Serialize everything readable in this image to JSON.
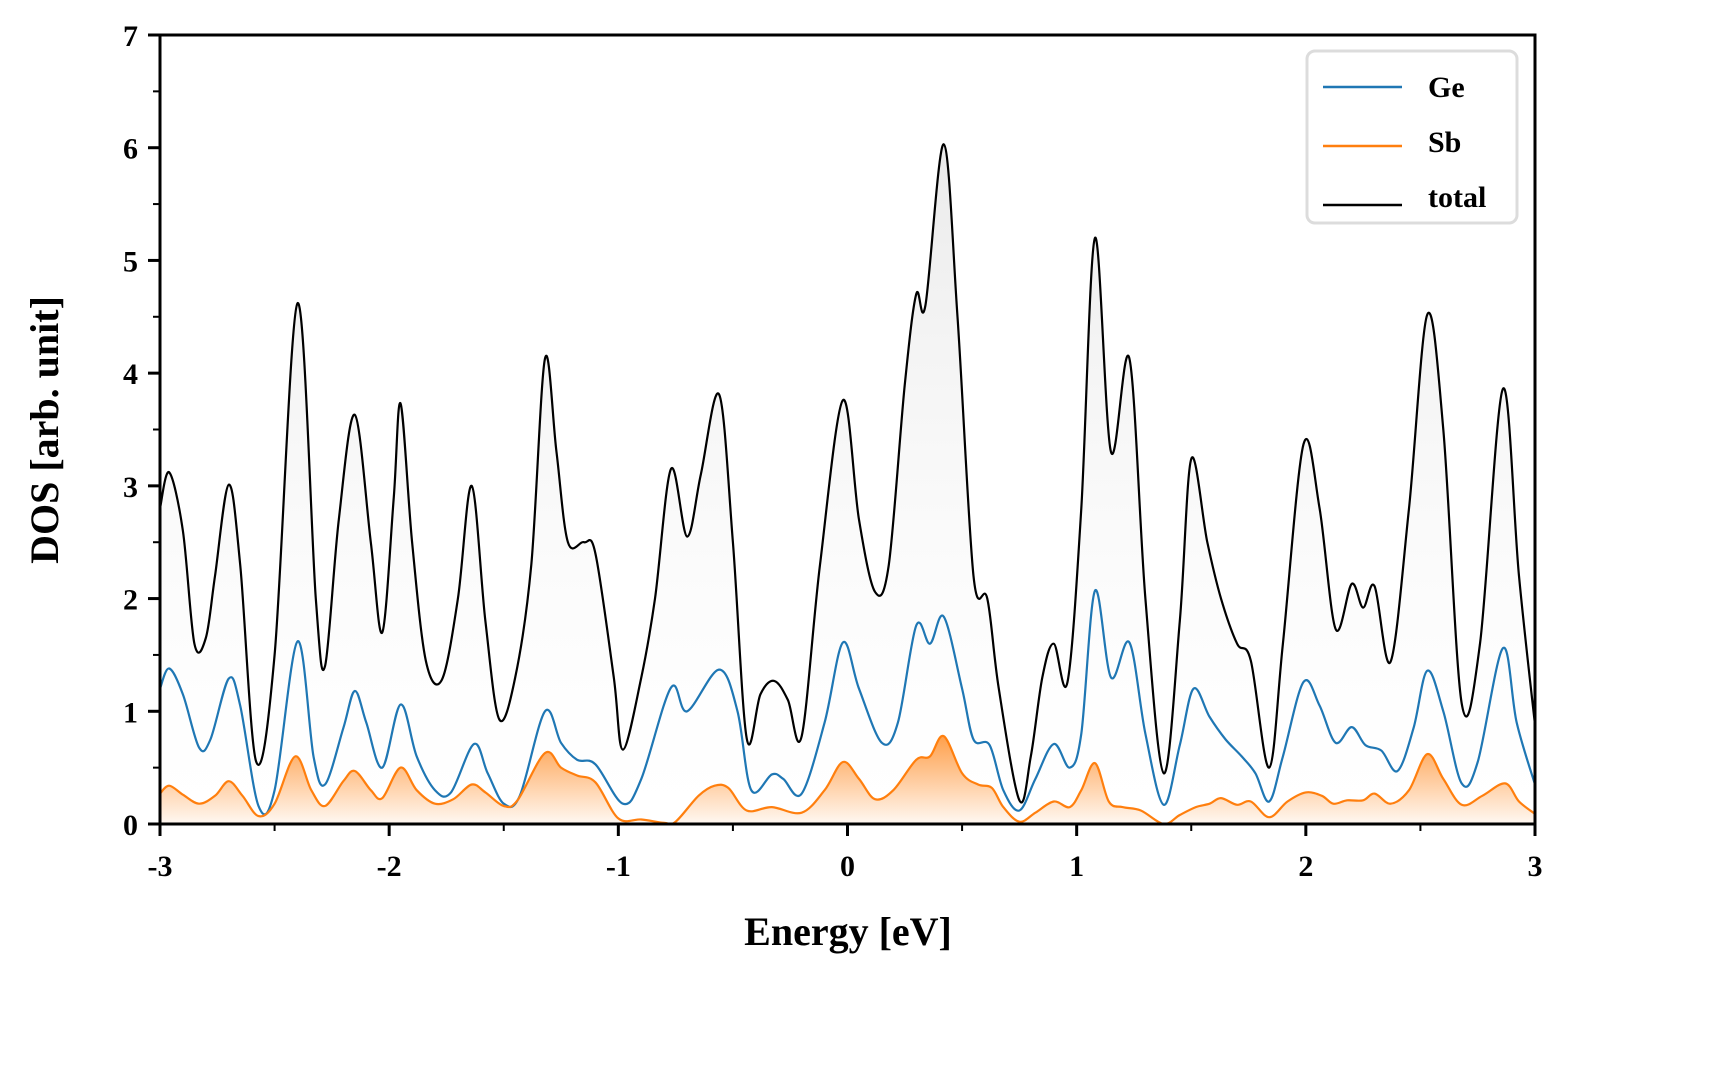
{
  "chart_data": {
    "type": "line",
    "title": "",
    "xlabel": "Energy [eV]",
    "ylabel": "DOS [arb. unit]",
    "xlim": [
      -3,
      3
    ],
    "ylim": [
      0,
      7
    ],
    "xticks": [
      -3,
      -2,
      -1,
      0,
      1,
      2,
      3
    ],
    "xtick_labels": [
      "-3",
      "-2",
      "-1",
      "0",
      "1",
      "2",
      "3"
    ],
    "yticks": [
      0,
      1,
      2,
      3,
      4,
      5,
      6,
      7
    ],
    "ytick_labels": [
      "0",
      "1",
      "2",
      "3",
      "4",
      "5",
      "6",
      "7"
    ],
    "grid": false,
    "legend_position": "top-right",
    "series": [
      {
        "name": "Ge",
        "color": "#1f77b4",
        "filled": false,
        "points": [
          [
            -3.0,
            1.2
          ],
          [
            -2.96,
            1.38
          ],
          [
            -2.9,
            1.15
          ],
          [
            -2.83,
            0.68
          ],
          [
            -2.78,
            0.75
          ],
          [
            -2.7,
            1.29
          ],
          [
            -2.65,
            1.05
          ],
          [
            -2.57,
            0.16
          ],
          [
            -2.5,
            0.3
          ],
          [
            -2.4,
            1.62
          ],
          [
            -2.33,
            0.6
          ],
          [
            -2.28,
            0.35
          ],
          [
            -2.2,
            0.85
          ],
          [
            -2.15,
            1.18
          ],
          [
            -2.1,
            0.9
          ],
          [
            -2.03,
            0.5
          ],
          [
            -1.95,
            1.06
          ],
          [
            -1.88,
            0.6
          ],
          [
            -1.8,
            0.3
          ],
          [
            -1.73,
            0.28
          ],
          [
            -1.63,
            0.71
          ],
          [
            -1.57,
            0.45
          ],
          [
            -1.5,
            0.18
          ],
          [
            -1.43,
            0.25
          ],
          [
            -1.32,
            1.0
          ],
          [
            -1.25,
            0.72
          ],
          [
            -1.18,
            0.57
          ],
          [
            -1.1,
            0.53
          ],
          [
            -0.98,
            0.18
          ],
          [
            -0.9,
            0.4
          ],
          [
            -0.77,
            1.21
          ],
          [
            -0.7,
            1.0
          ],
          [
            -0.56,
            1.37
          ],
          [
            -0.48,
            1.0
          ],
          [
            -0.42,
            0.3
          ],
          [
            -0.33,
            0.44
          ],
          [
            -0.28,
            0.4
          ],
          [
            -0.2,
            0.27
          ],
          [
            -0.1,
            0.9
          ],
          [
            -0.02,
            1.61
          ],
          [
            0.05,
            1.2
          ],
          [
            0.15,
            0.72
          ],
          [
            0.22,
            0.9
          ],
          [
            0.3,
            1.76
          ],
          [
            0.36,
            1.6
          ],
          [
            0.42,
            1.84
          ],
          [
            0.5,
            1.2
          ],
          [
            0.55,
            0.75
          ],
          [
            0.62,
            0.7
          ],
          [
            0.68,
            0.3
          ],
          [
            0.75,
            0.12
          ],
          [
            0.82,
            0.4
          ],
          [
            0.9,
            0.71
          ],
          [
            0.97,
            0.5
          ],
          [
            1.02,
            0.8
          ],
          [
            1.08,
            2.07
          ],
          [
            1.15,
            1.3
          ],
          [
            1.23,
            1.61
          ],
          [
            1.3,
            0.8
          ],
          [
            1.38,
            0.17
          ],
          [
            1.45,
            0.7
          ],
          [
            1.51,
            1.2
          ],
          [
            1.58,
            0.95
          ],
          [
            1.65,
            0.75
          ],
          [
            1.72,
            0.6
          ],
          [
            1.78,
            0.45
          ],
          [
            1.84,
            0.2
          ],
          [
            1.9,
            0.6
          ],
          [
            1.99,
            1.26
          ],
          [
            2.06,
            1.05
          ],
          [
            2.13,
            0.72
          ],
          [
            2.2,
            0.86
          ],
          [
            2.26,
            0.7
          ],
          [
            2.33,
            0.65
          ],
          [
            2.4,
            0.47
          ],
          [
            2.47,
            0.85
          ],
          [
            2.53,
            1.36
          ],
          [
            2.6,
            1.0
          ],
          [
            2.68,
            0.36
          ],
          [
            2.75,
            0.55
          ],
          [
            2.86,
            1.56
          ],
          [
            2.92,
            0.9
          ],
          [
            3.0,
            0.35
          ]
        ]
      },
      {
        "name": "Sb",
        "color": "#ff7f0e",
        "filled": true,
        "points": [
          [
            -3.0,
            0.27
          ],
          [
            -2.96,
            0.34
          ],
          [
            -2.9,
            0.26
          ],
          [
            -2.83,
            0.18
          ],
          [
            -2.76,
            0.25
          ],
          [
            -2.7,
            0.38
          ],
          [
            -2.64,
            0.25
          ],
          [
            -2.57,
            0.07
          ],
          [
            -2.5,
            0.18
          ],
          [
            -2.41,
            0.6
          ],
          [
            -2.34,
            0.3
          ],
          [
            -2.28,
            0.16
          ],
          [
            -2.2,
            0.38
          ],
          [
            -2.15,
            0.47
          ],
          [
            -2.08,
            0.3
          ],
          [
            -2.03,
            0.23
          ],
          [
            -1.95,
            0.5
          ],
          [
            -1.88,
            0.3
          ],
          [
            -1.8,
            0.18
          ],
          [
            -1.72,
            0.22
          ],
          [
            -1.64,
            0.35
          ],
          [
            -1.58,
            0.28
          ],
          [
            -1.5,
            0.16
          ],
          [
            -1.44,
            0.21
          ],
          [
            -1.32,
            0.63
          ],
          [
            -1.25,
            0.5
          ],
          [
            -1.18,
            0.43
          ],
          [
            -1.1,
            0.37
          ],
          [
            -1.0,
            0.05
          ],
          [
            -0.9,
            0.04
          ],
          [
            -0.8,
            0.01
          ],
          [
            -0.75,
            0.02
          ],
          [
            -0.65,
            0.25
          ],
          [
            -0.58,
            0.34
          ],
          [
            -0.52,
            0.32
          ],
          [
            -0.44,
            0.12
          ],
          [
            -0.33,
            0.15
          ],
          [
            -0.2,
            0.1
          ],
          [
            -0.1,
            0.3
          ],
          [
            -0.02,
            0.55
          ],
          [
            0.05,
            0.4
          ],
          [
            0.12,
            0.22
          ],
          [
            0.2,
            0.3
          ],
          [
            0.3,
            0.57
          ],
          [
            0.36,
            0.6
          ],
          [
            0.42,
            0.78
          ],
          [
            0.5,
            0.45
          ],
          [
            0.57,
            0.35
          ],
          [
            0.63,
            0.32
          ],
          [
            0.68,
            0.15
          ],
          [
            0.75,
            0.02
          ],
          [
            0.82,
            0.1
          ],
          [
            0.9,
            0.2
          ],
          [
            0.97,
            0.15
          ],
          [
            1.02,
            0.3
          ],
          [
            1.08,
            0.54
          ],
          [
            1.14,
            0.2
          ],
          [
            1.2,
            0.15
          ],
          [
            1.28,
            0.12
          ],
          [
            1.38,
            0.0
          ],
          [
            1.45,
            0.08
          ],
          [
            1.52,
            0.15
          ],
          [
            1.58,
            0.18
          ],
          [
            1.63,
            0.23
          ],
          [
            1.7,
            0.17
          ],
          [
            1.76,
            0.2
          ],
          [
            1.84,
            0.06
          ],
          [
            1.92,
            0.2
          ],
          [
            2.0,
            0.28
          ],
          [
            2.07,
            0.25
          ],
          [
            2.12,
            0.18
          ],
          [
            2.18,
            0.21
          ],
          [
            2.25,
            0.21
          ],
          [
            2.3,
            0.27
          ],
          [
            2.37,
            0.18
          ],
          [
            2.45,
            0.3
          ],
          [
            2.53,
            0.62
          ],
          [
            2.6,
            0.4
          ],
          [
            2.68,
            0.17
          ],
          [
            2.77,
            0.25
          ],
          [
            2.87,
            0.36
          ],
          [
            2.93,
            0.2
          ],
          [
            3.0,
            0.09
          ]
        ]
      },
      {
        "name": "total",
        "color": "#000000",
        "filled": true,
        "points": [
          [
            -3.0,
            2.8
          ],
          [
            -2.96,
            3.12
          ],
          [
            -2.9,
            2.6
          ],
          [
            -2.85,
            1.6
          ],
          [
            -2.8,
            1.65
          ],
          [
            -2.76,
            2.2
          ],
          [
            -2.7,
            3.01
          ],
          [
            -2.65,
            2.3
          ],
          [
            -2.58,
            0.55
          ],
          [
            -2.5,
            1.5
          ],
          [
            -2.4,
            4.62
          ],
          [
            -2.32,
            2.0
          ],
          [
            -2.28,
            1.4
          ],
          [
            -2.22,
            2.7
          ],
          [
            -2.15,
            3.63
          ],
          [
            -2.08,
            2.5
          ],
          [
            -2.03,
            1.7
          ],
          [
            -1.98,
            2.9
          ],
          [
            -1.95,
            3.73
          ],
          [
            -1.9,
            2.5
          ],
          [
            -1.84,
            1.45
          ],
          [
            -1.77,
            1.28
          ],
          [
            -1.7,
            2.0
          ],
          [
            -1.64,
            3.0
          ],
          [
            -1.58,
            1.8
          ],
          [
            -1.52,
            0.93
          ],
          [
            -1.45,
            1.3
          ],
          [
            -1.38,
            2.3
          ],
          [
            -1.32,
            4.13
          ],
          [
            -1.27,
            3.3
          ],
          [
            -1.22,
            2.5
          ],
          [
            -1.15,
            2.5
          ],
          [
            -1.1,
            2.4
          ],
          [
            -1.02,
            1.3
          ],
          [
            -0.98,
            0.66
          ],
          [
            -0.9,
            1.3
          ],
          [
            -0.84,
            2.0
          ],
          [
            -0.77,
            3.15
          ],
          [
            -0.7,
            2.55
          ],
          [
            -0.64,
            3.1
          ],
          [
            -0.56,
            3.81
          ],
          [
            -0.5,
            2.5
          ],
          [
            -0.44,
            0.76
          ],
          [
            -0.38,
            1.15
          ],
          [
            -0.32,
            1.27
          ],
          [
            -0.26,
            1.1
          ],
          [
            -0.2,
            0.78
          ],
          [
            -0.12,
            2.3
          ],
          [
            -0.02,
            3.76
          ],
          [
            0.05,
            2.7
          ],
          [
            0.12,
            2.06
          ],
          [
            0.18,
            2.3
          ],
          [
            0.25,
            3.9
          ],
          [
            0.3,
            4.7
          ],
          [
            0.34,
            4.6
          ],
          [
            0.42,
            6.03
          ],
          [
            0.48,
            4.5
          ],
          [
            0.55,
            2.2
          ],
          [
            0.61,
            2.0
          ],
          [
            0.66,
            1.2
          ],
          [
            0.75,
            0.21
          ],
          [
            0.8,
            0.6
          ],
          [
            0.85,
            1.3
          ],
          [
            0.9,
            1.6
          ],
          [
            0.96,
            1.26
          ],
          [
            1.02,
            2.8
          ],
          [
            1.08,
            5.2
          ],
          [
            1.15,
            3.3
          ],
          [
            1.23,
            4.13
          ],
          [
            1.3,
            2.0
          ],
          [
            1.38,
            0.45
          ],
          [
            1.45,
            1.8
          ],
          [
            1.5,
            3.24
          ],
          [
            1.57,
            2.5
          ],
          [
            1.63,
            2.0
          ],
          [
            1.7,
            1.6
          ],
          [
            1.76,
            1.45
          ],
          [
            1.84,
            0.5
          ],
          [
            1.9,
            1.6
          ],
          [
            1.99,
            3.37
          ],
          [
            2.06,
            2.8
          ],
          [
            2.13,
            1.73
          ],
          [
            2.2,
            2.13
          ],
          [
            2.25,
            1.92
          ],
          [
            2.3,
            2.11
          ],
          [
            2.37,
            1.44
          ],
          [
            2.45,
            2.8
          ],
          [
            2.53,
            4.52
          ],
          [
            2.6,
            3.5
          ],
          [
            2.68,
            1.07
          ],
          [
            2.76,
            1.6
          ],
          [
            2.86,
            3.86
          ],
          [
            2.93,
            2.2
          ],
          [
            3.0,
            0.88
          ]
        ]
      }
    ]
  }
}
